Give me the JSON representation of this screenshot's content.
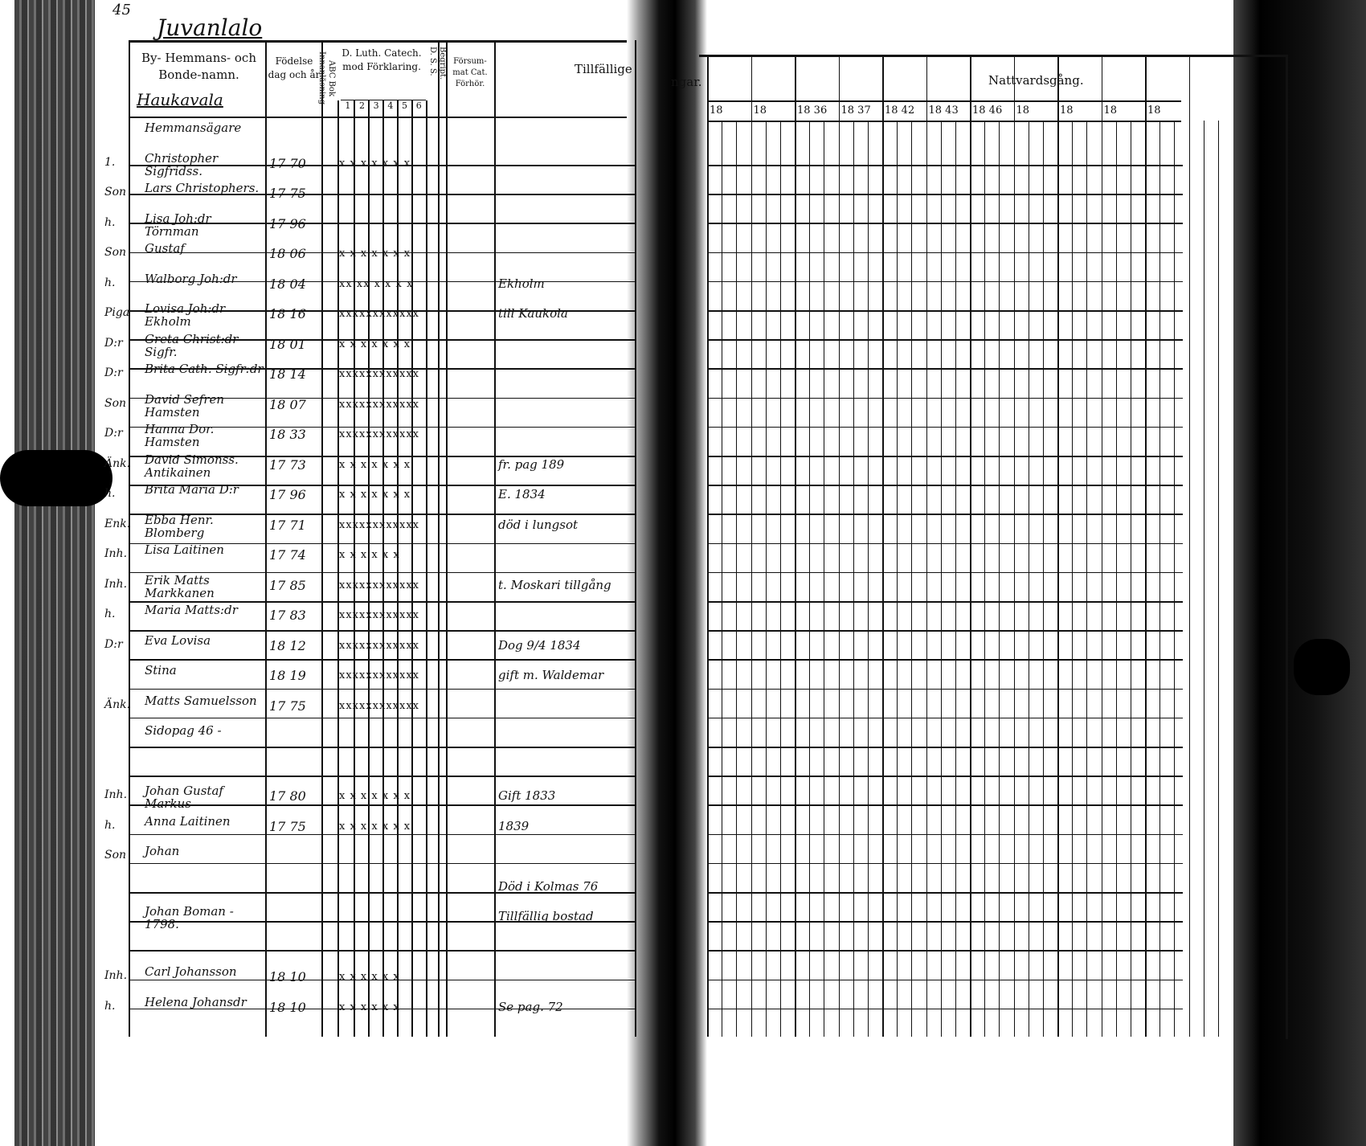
{
  "page_number": "45",
  "village_title": "Juvanlalo",
  "section_heading": "Haukavala",
  "left_headers": {
    "name_col": [
      "By- Hemmans- och",
      "Bonde-namn."
    ],
    "birth_col": [
      "Födelse",
      "dag och år"
    ],
    "abc_col": "ABC Bok Innanläsning",
    "catech_col": [
      "D. Luth. Catech.",
      "mod Förklaring."
    ],
    "catech_numbers": [
      "1",
      "2",
      "3",
      "4",
      "5",
      "6"
    ],
    "dss_col": "D. S. S.",
    "begrip_col": "Begript.",
    "forsummat_col": [
      "Försum-",
      "mat Cat.",
      "Förhör."
    ],
    "tillfalliga_col": "Tillfällige"
  },
  "right_headers": {
    "flyttningar_col": "ngar.",
    "nattvard_col": "Nattvardsgång.",
    "year_cols": [
      "18",
      "18",
      "18 36",
      "18 37",
      "18 42",
      "18 43",
      "18 46",
      "18",
      "18",
      "18",
      "18"
    ]
  },
  "rows": [
    {
      "role": "",
      "name": "Hemmansägare",
      "year": "",
      "marks": "",
      "note": ""
    },
    {
      "role": "1.",
      "name": "Christopher Sigfridss.",
      "year": "17 70",
      "marks": "x x x x x x x",
      "note": ""
    },
    {
      "role": "Son",
      "name": "Lars Christophers.",
      "year": "17 75",
      "marks": "",
      "note": ""
    },
    {
      "role": "h.",
      "name": "Lisa Joh:dr Törnman",
      "year": "17 96",
      "marks": "",
      "note": ""
    },
    {
      "role": "Son",
      "name": "Gustaf",
      "year": "18 06",
      "marks": "x x x x x x x",
      "note": ""
    },
    {
      "role": "h.",
      "name": "Walborg Joh:dr",
      "year": "18 04",
      "marks": "xx xx x x x x",
      "note": "Ekholm"
    },
    {
      "role": "Piga",
      "name": "Lovisa Joh:dr Ekholm",
      "year": "18 16",
      "marks": "xxxxxxxxxxxx",
      "note": "till Kaukola"
    },
    {
      "role": "D:r",
      "name": "Greta Christ:dr Sigfr.",
      "year": "18 01",
      "marks": "x x x x x x x",
      "note": ""
    },
    {
      "role": "D:r",
      "name": "Brita Cath. Sigfr:dr",
      "year": "18 14",
      "marks": "xxxxxxxxxxxx",
      "note": ""
    },
    {
      "role": "Son",
      "name": "David Sefren Hamsten",
      "year": "18 07",
      "marks": "xxxxxxxxxxxx",
      "note": ""
    },
    {
      "role": "D:r",
      "name": "Hanna Dor. Hamsten",
      "year": "18 33",
      "marks": "xxxxxxxxxxxx",
      "note": ""
    },
    {
      "role": "Änk.",
      "name": "David Simonss. Antikainen",
      "year": "17 73",
      "marks": "x x x x x x x",
      "note": "fr. pag 189"
    },
    {
      "role": "h.",
      "name": "Brita Maria D:r",
      "year": "17 96",
      "marks": "x x x x x x x",
      "note": "E. 1834"
    },
    {
      "role": "Enk.",
      "name": "Ebba Henr. Blomberg",
      "year": "17 71",
      "marks": "xxxxxxxxxxxx",
      "note": "död i lungsot"
    },
    {
      "role": "Inh.",
      "name": "Lisa Laitinen",
      "year": "17 74",
      "marks": "x x x x x x",
      "note": ""
    },
    {
      "role": "Inh.",
      "name": "Erik Matts Markkanen",
      "year": "17 85",
      "marks": "xxxxxxxxxxxx",
      "note": "t. Moskari tillgång"
    },
    {
      "role": "h.",
      "name": "Maria Matts:dr",
      "year": "17 83",
      "marks": "xxxxxxxxxxxx",
      "note": ""
    },
    {
      "role": "D:r",
      "name": "Eva Lovisa",
      "year": "18 12",
      "marks": "xxxxxxxxxxxx",
      "note": "Dog 9/4 1834"
    },
    {
      "role": "",
      "name": "Stina",
      "year": "18 19",
      "marks": "xxxxxxxxxxxx",
      "note": "gift m. Waldemar"
    },
    {
      "role": "Änk.",
      "name": "Matts Samuelsson",
      "year": "17 75",
      "marks": "xxxxxxxxxxxx",
      "note": ""
    },
    {
      "role": "",
      "name": "Sidopag 46 -",
      "year": "",
      "marks": "",
      "note": ""
    },
    {
      "role": "",
      "name": "",
      "year": "",
      "marks": "",
      "note": ""
    },
    {
      "role": "Inh.",
      "name": "Johan Gustaf Markus",
      "year": "17 80",
      "marks": "x x x x x x x",
      "note": "Gift 1833"
    },
    {
      "role": "h.",
      "name": "Anna Laitinen",
      "year": "17 75",
      "marks": "x x x x x x x",
      "note": "1839"
    },
    {
      "role": "Son",
      "name": "Johan",
      "year": "",
      "marks": "",
      "note": ""
    },
    {
      "role": "",
      "name": "",
      "year": "",
      "marks": "",
      "note": "Död i Kolmas 76"
    },
    {
      "role": "",
      "name": "Johan Boman - 1798.",
      "year": "",
      "marks": "",
      "note": "Tillfällig bostad"
    },
    {
      "role": "",
      "name": "",
      "year": "",
      "marks": "",
      "note": ""
    },
    {
      "role": "Inh.",
      "name": "Carl Johansson",
      "year": "18 10",
      "marks": "x x x x x x",
      "note": ""
    },
    {
      "role": "h.",
      "name": "Helena Johansdr",
      "year": "18 10",
      "marks": "x x x x x x",
      "note": "Se pag. 72"
    }
  ],
  "colors": {
    "ink": "#111111",
    "paper": "#ffffff",
    "shadow": "#000000"
  }
}
